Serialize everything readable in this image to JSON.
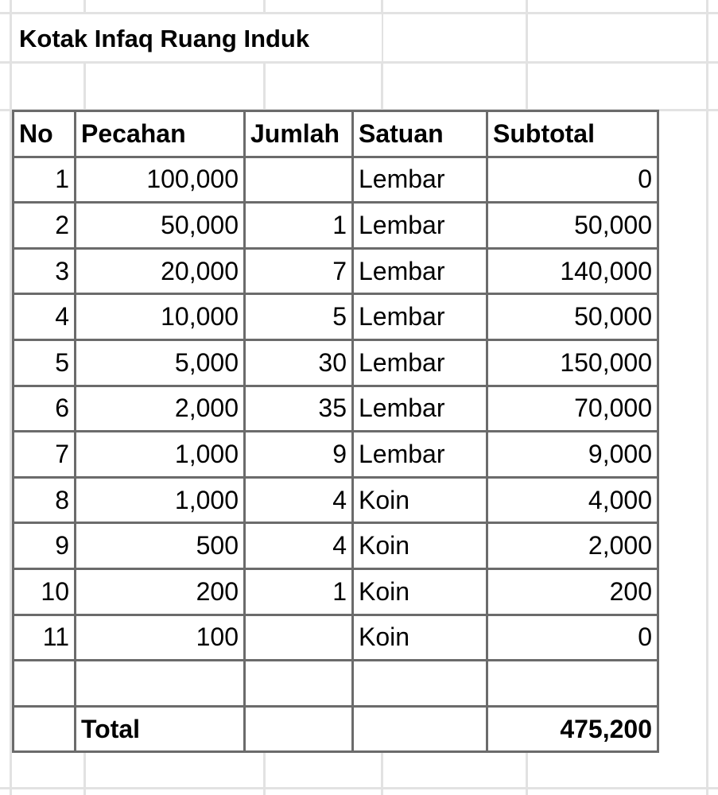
{
  "title": "Kotak Infaq Ruang Induk",
  "headers": [
    "No",
    "Pecahan",
    "Jumlah",
    "Satuan",
    "Subtotal"
  ],
  "rows": [
    {
      "no": "1",
      "pecahan": "100,000",
      "jumlah": "",
      "satuan": "Lembar",
      "subtotal": "0"
    },
    {
      "no": "2",
      "pecahan": "50,000",
      "jumlah": "1",
      "satuan": "Lembar",
      "subtotal": "50,000"
    },
    {
      "no": "3",
      "pecahan": "20,000",
      "jumlah": "7",
      "satuan": "Lembar",
      "subtotal": "140,000"
    },
    {
      "no": "4",
      "pecahan": "10,000",
      "jumlah": "5",
      "satuan": "Lembar",
      "subtotal": "50,000"
    },
    {
      "no": "5",
      "pecahan": "5,000",
      "jumlah": "30",
      "satuan": "Lembar",
      "subtotal": "150,000"
    },
    {
      "no": "6",
      "pecahan": "2,000",
      "jumlah": "35",
      "satuan": "Lembar",
      "subtotal": "70,000"
    },
    {
      "no": "7",
      "pecahan": "1,000",
      "jumlah": "9",
      "satuan": "Lembar",
      "subtotal": "9,000"
    },
    {
      "no": "8",
      "pecahan": "1,000",
      "jumlah": "4",
      "satuan": "Koin",
      "subtotal": "4,000"
    },
    {
      "no": "9",
      "pecahan": "500",
      "jumlah": "4",
      "satuan": "Koin",
      "subtotal": "2,000"
    },
    {
      "no": "10",
      "pecahan": "200",
      "jumlah": "1",
      "satuan": "Koin",
      "subtotal": "200"
    },
    {
      "no": "11",
      "pecahan": "100",
      "jumlah": "",
      "satuan": "Koin",
      "subtotal": "0"
    }
  ],
  "total": {
    "label": "Total",
    "value": "475,200"
  }
}
